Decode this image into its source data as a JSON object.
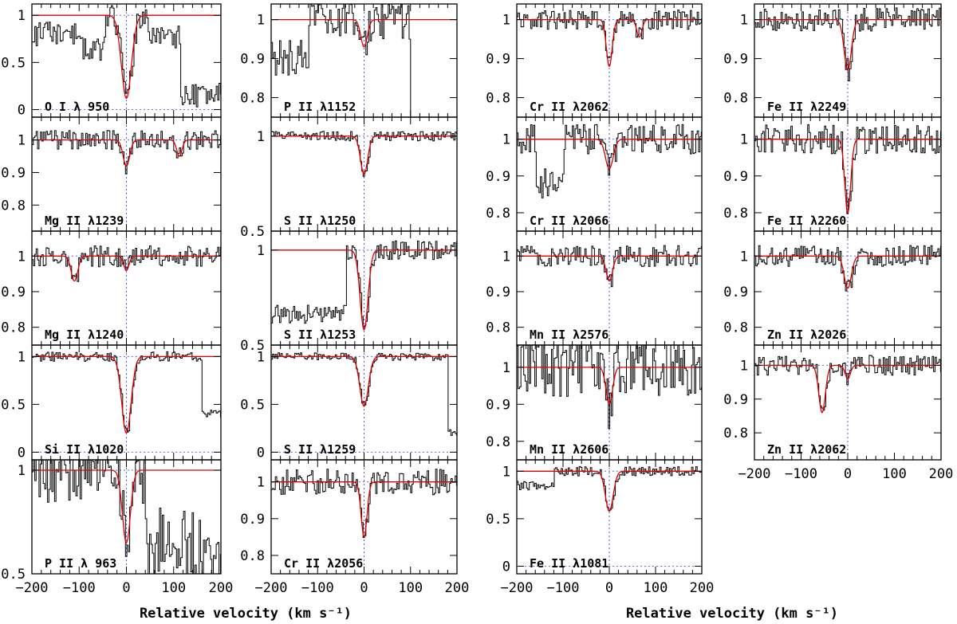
{
  "figure": {
    "xlabel": "Relative velocity (km s⁻¹)",
    "x_ticks": [
      -200,
      -100,
      0,
      100,
      200
    ],
    "xlim": [
      -200,
      200
    ]
  },
  "chart_data": [
    {
      "type": "line",
      "label": "O I λ 950",
      "column": 1,
      "row": 1,
      "ylim": [
        -0.08,
        1.12
      ],
      "y_ticks": [
        0,
        0.5,
        1
      ],
      "y_tick_labels": [
        "0",
        "0.5",
        "1"
      ],
      "ref_lines": [
        0,
        1
      ],
      "fit": [
        {
          "v": 0,
          "depth": 0.88,
          "width": 15
        }
      ],
      "noise": 0.13,
      "seed": 11,
      "regions": [
        {
          "from": -200,
          "to": -105,
          "level": 0.8
        },
        {
          "from": -105,
          "to": -45,
          "level": 0.65
        },
        {
          "from": 45,
          "to": 115,
          "level": 0.78
        },
        {
          "from": 115,
          "to": 200,
          "level": 0.15
        }
      ]
    },
    {
      "type": "line",
      "label": "Mg II λ1239",
      "column": 1,
      "row": 2,
      "ylim": [
        0.72,
        1.07
      ],
      "y_ticks": [
        0.8,
        0.9,
        1
      ],
      "y_tick_labels": [
        "0.8",
        "0.9",
        "1"
      ],
      "ref_lines": [
        1
      ],
      "fit": [
        {
          "v": 0,
          "depth": 0.08,
          "width": 10
        },
        {
          "v": 112,
          "depth": 0.05,
          "width": 8
        }
      ],
      "noise": 0.03,
      "seed": 12,
      "regions": []
    },
    {
      "type": "line",
      "label": "Mg II λ1240",
      "column": 1,
      "row": 3,
      "ylim": [
        0.75,
        1.07
      ],
      "y_ticks": [
        0.8,
        0.9,
        1
      ],
      "y_tick_labels": [
        "0.8",
        "0.9",
        "1"
      ],
      "ref_lines": [
        1
      ],
      "fit": [
        {
          "v": 0,
          "depth": 0.04,
          "width": 8
        },
        {
          "v": -110,
          "depth": 0.07,
          "width": 10
        }
      ],
      "noise": 0.03,
      "seed": 13,
      "regions": []
    },
    {
      "type": "line",
      "label": "Si II λ1020",
      "column": 1,
      "row": 4,
      "ylim": [
        -0.08,
        1.12
      ],
      "y_ticks": [
        0,
        0.5,
        1
      ],
      "y_tick_labels": [
        "0",
        "0.5",
        "1"
      ],
      "ref_lines": [
        0,
        1
      ],
      "fit": [
        {
          "v": 0,
          "depth": 0.8,
          "width": 14
        }
      ],
      "noise": 0.05,
      "seed": 14,
      "regions": [
        {
          "from": 160,
          "to": 200,
          "level": 0.4
        }
      ]
    },
    {
      "type": "line",
      "label": "P II λ 963",
      "column": 1,
      "row": 5,
      "ylim": [
        0.5,
        1.05
      ],
      "y_ticks": [
        0.5,
        1
      ],
      "y_tick_labels": [
        "0.5",
        "1"
      ],
      "ref_lines": [
        1
      ],
      "fit": [
        {
          "v": 0,
          "depth": 0.35,
          "width": 12
        }
      ],
      "noise": 0.17,
      "seed": 15,
      "regions": [
        {
          "from": 40,
          "to": 200,
          "level": 0.65
        }
      ]
    },
    {
      "type": "line",
      "label": "P II λ1152",
      "column": 2,
      "row": 1,
      "ylim": [
        0.75,
        1.04
      ],
      "y_ticks": [
        0.8,
        0.9,
        1
      ],
      "y_tick_labels": [
        "0.8",
        "0.9",
        "1"
      ],
      "ref_lines": [
        1
      ],
      "fit": [
        {
          "v": 0,
          "depth": 0.07,
          "width": 10
        }
      ],
      "noise": 0.05,
      "seed": 21,
      "regions": [
        {
          "from": -200,
          "to": -120,
          "level": 0.9
        },
        {
          "from": 100,
          "to": 200,
          "level": 0.5
        }
      ]
    },
    {
      "type": "line",
      "label": "S II λ1250",
      "column": 2,
      "row": 2,
      "ylim": [
        0.5,
        1.1
      ],
      "y_ticks": [
        0.5,
        1
      ],
      "y_tick_labels": [
        "0.5",
        "1"
      ],
      "ref_lines": [
        1
      ],
      "fit": [
        {
          "v": 0,
          "depth": 0.2,
          "width": 11
        }
      ],
      "noise": 0.025,
      "seed": 22,
      "regions": []
    },
    {
      "type": "line",
      "label": "S II λ1253",
      "column": 2,
      "row": 3,
      "ylim": [
        0.5,
        1.1
      ],
      "y_ticks": [
        0.5,
        1
      ],
      "y_tick_labels": [
        "0.5",
        "1"
      ],
      "ref_lines": [
        1
      ],
      "fit": [
        {
          "v": 0,
          "depth": 0.42,
          "width": 12
        }
      ],
      "noise": 0.05,
      "seed": 23,
      "regions": [
        {
          "from": -200,
          "to": -40,
          "level": 0.66
        }
      ]
    },
    {
      "type": "line",
      "label": "S II λ1259",
      "column": 2,
      "row": 4,
      "ylim": [
        -0.08,
        1.12
      ],
      "y_ticks": [
        0,
        0.5,
        1
      ],
      "y_tick_labels": [
        "0",
        "0.5",
        "1"
      ],
      "ref_lines": [
        0,
        1
      ],
      "fit": [
        {
          "v": 0,
          "depth": 0.52,
          "width": 13
        }
      ],
      "noise": 0.04,
      "seed": 24,
      "regions": [
        {
          "from": 180,
          "to": 200,
          "level": 0.2
        }
      ]
    },
    {
      "type": "line",
      "label": "Cr II λ2056",
      "column": 2,
      "row": 5,
      "ylim": [
        0.75,
        1.06
      ],
      "y_ticks": [
        0.8,
        0.9,
        1
      ],
      "y_tick_labels": [
        "0.8",
        "0.9",
        "1"
      ],
      "ref_lines": [
        1
      ],
      "fit": [
        {
          "v": 0,
          "depth": 0.15,
          "width": 9
        }
      ],
      "noise": 0.035,
      "seed": 25,
      "regions": []
    },
    {
      "type": "line",
      "label": "Cr II λ2062",
      "column": 3,
      "row": 1,
      "ylim": [
        0.75,
        1.04
      ],
      "y_ticks": [
        0.8,
        0.9,
        1
      ],
      "y_tick_labels": [
        "0.8",
        "0.9",
        "1"
      ],
      "ref_lines": [
        1
      ],
      "fit": [
        {
          "v": 0,
          "depth": 0.12,
          "width": 9
        },
        {
          "v": 65,
          "depth": 0.045,
          "width": 8
        }
      ],
      "noise": 0.025,
      "seed": 31,
      "regions": []
    },
    {
      "type": "line",
      "label": "Cr II λ2066",
      "column": 3,
      "row": 2,
      "ylim": [
        0.75,
        1.06
      ],
      "y_ticks": [
        0.8,
        0.9,
        1
      ],
      "y_tick_labels": [
        "0.8",
        "0.9",
        "1"
      ],
      "ref_lines": [
        1
      ],
      "fit": [
        {
          "v": 0,
          "depth": 0.08,
          "width": 12
        }
      ],
      "noise": 0.04,
      "seed": 32,
      "regions": [
        {
          "from": -160,
          "to": -100,
          "level": 0.88
        }
      ]
    },
    {
      "type": "line",
      "label": "Mn II λ2576",
      "column": 3,
      "row": 3,
      "ylim": [
        0.75,
        1.07
      ],
      "y_ticks": [
        0.8,
        0.9,
        1
      ],
      "y_tick_labels": [
        "0.8",
        "0.9",
        "1"
      ],
      "ref_lines": [
        1
      ],
      "fit": [
        {
          "v": 0,
          "depth": 0.07,
          "width": 10
        }
      ],
      "noise": 0.03,
      "seed": 33,
      "regions": []
    },
    {
      "type": "line",
      "label": "Mn II λ2606",
      "column": 3,
      "row": 4,
      "ylim": [
        0.75,
        1.06
      ],
      "y_ticks": [
        0.8,
        0.9,
        1
      ],
      "y_tick_labels": [
        "0.8",
        "0.9",
        "1"
      ],
      "ref_lines": [
        1
      ],
      "fit": [
        {
          "v": 0,
          "depth": 0.1,
          "width": 10
        }
      ],
      "noise": 0.08,
      "seed": 34,
      "regions": []
    },
    {
      "type": "line",
      "label": "Fe II λ1081",
      "column": 3,
      "row": 5,
      "ylim": [
        -0.08,
        1.12
      ],
      "y_ticks": [
        0,
        0.5,
        1
      ],
      "y_tick_labels": [
        "0",
        "0.5",
        "1"
      ],
      "ref_lines": [
        0,
        1
      ],
      "fit": [
        {
          "v": 0,
          "depth": 0.42,
          "width": 12
        }
      ],
      "noise": 0.05,
      "seed": 35,
      "regions": [
        {
          "from": -200,
          "to": -120,
          "level": 0.85
        }
      ]
    },
    {
      "type": "line",
      "label": "Fe II λ2249",
      "column": 4,
      "row": 1,
      "ylim": [
        0.75,
        1.04
      ],
      "y_ticks": [
        0.8,
        0.9,
        1
      ],
      "y_tick_labels": [
        "0.8",
        "0.9",
        "1"
      ],
      "ref_lines": [
        1
      ],
      "fit": [
        {
          "v": 0,
          "depth": 0.13,
          "width": 11
        }
      ],
      "noise": 0.03,
      "seed": 41,
      "regions": []
    },
    {
      "type": "line",
      "label": "Fe II λ2260",
      "column": 4,
      "row": 2,
      "ylim": [
        0.75,
        1.06
      ],
      "y_ticks": [
        0.8,
        0.9,
        1
      ],
      "y_tick_labels": [
        "0.8",
        "0.9",
        "1"
      ],
      "ref_lines": [
        1
      ],
      "fit": [
        {
          "v": 0,
          "depth": 0.2,
          "width": 9
        }
      ],
      "noise": 0.04,
      "seed": 42,
      "regions": []
    },
    {
      "type": "line",
      "label": "Zn II λ2026",
      "column": 4,
      "row": 3,
      "ylim": [
        0.75,
        1.07
      ],
      "y_ticks": [
        0.8,
        0.9,
        1
      ],
      "y_tick_labels": [
        "0.8",
        "0.9",
        "1"
      ],
      "ref_lines": [
        1
      ],
      "fit": [
        {
          "v": 0,
          "depth": 0.09,
          "width": 11
        }
      ],
      "noise": 0.03,
      "seed": 43,
      "regions": []
    },
    {
      "type": "line",
      "label": "Zn II λ2062",
      "column": 4,
      "row": 4,
      "ylim": [
        0.72,
        1.06
      ],
      "y_ticks": [
        0.8,
        0.9,
        1
      ],
      "y_tick_labels": [
        "0.8",
        "0.9",
        "1"
      ],
      "ref_lines": [
        1
      ],
      "fit": [
        {
          "v": -55,
          "depth": 0.14,
          "width": 10
        },
        {
          "v": 0,
          "depth": 0.04,
          "width": 8
        }
      ],
      "noise": 0.03,
      "seed": 44,
      "regions": []
    }
  ]
}
